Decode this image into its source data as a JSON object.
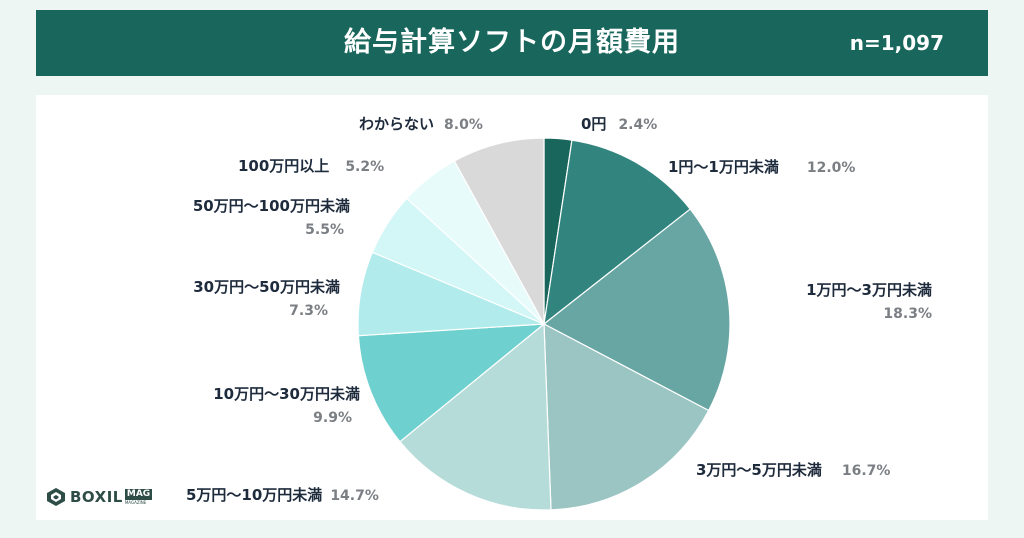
{
  "header": {
    "title": "給与計算ソフトの月額費用",
    "count": "n=1,097"
  },
  "logo": {
    "word": "BOXIL",
    "badge": "MAG",
    "sub": "MAGAZINE"
  },
  "chart_data": {
    "type": "pie",
    "title": "給与計算ソフトの月額費用",
    "n": "n=1,097",
    "unit": "%",
    "slices": [
      {
        "label": "0円",
        "value": 2.4,
        "value_label": "2.4%",
        "color": "#19665c"
      },
      {
        "label": "1円〜1万円未満",
        "value": 12.0,
        "value_label": "12.0%",
        "color": "#32857f"
      },
      {
        "label": "1万円〜3万円未満",
        "value": 18.3,
        "value_label": "18.3%",
        "color": "#67a6a3"
      },
      {
        "label": "3万円〜5万円未満",
        "value": 16.7,
        "value_label": "16.7%",
        "color": "#9ac5c3"
      },
      {
        "label": "5万円〜10万円未満",
        "value": 14.7,
        "value_label": "14.7%",
        "color": "#b6dcda"
      },
      {
        "label": "10万円〜30万円未満",
        "value": 9.9,
        "value_label": "9.9%",
        "color": "#6fd1cf"
      },
      {
        "label": "30万円〜50万円未満",
        "value": 7.3,
        "value_label": "7.3%",
        "color": "#b1ebec"
      },
      {
        "label": "50万円〜100万円未満",
        "value": 5.5,
        "value_label": "5.5%",
        "color": "#d3f6f6"
      },
      {
        "label": "100万円以上",
        "value": 5.2,
        "value_label": "5.2%",
        "color": "#e8fbfb"
      },
      {
        "label": "わからない",
        "value": 8.0,
        "value_label": "8.0%",
        "color": "#d9d9d9"
      }
    ]
  }
}
